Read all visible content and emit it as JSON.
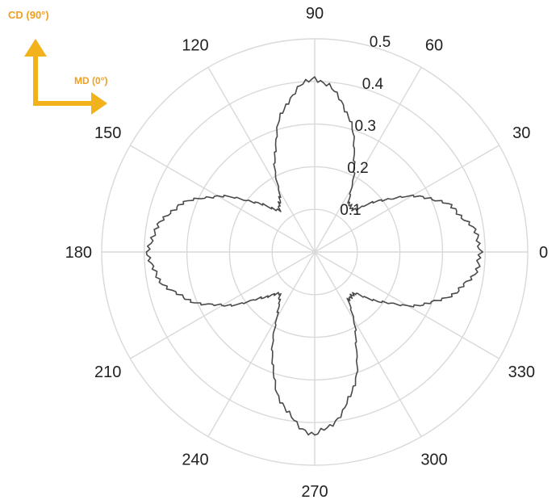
{
  "chart_data": {
    "type": "polar-line",
    "title": "",
    "angle_unit": "degrees",
    "angular_ticks": [
      0,
      30,
      60,
      90,
      120,
      150,
      180,
      210,
      240,
      270,
      300,
      330
    ],
    "angular_tick_labels": [
      "0",
      "30",
      "60",
      "90",
      "120",
      "150",
      "180",
      "210",
      "240",
      "270",
      "300",
      "330"
    ],
    "radial_ticks": [
      0.1,
      0.2,
      0.3,
      0.4,
      0.5
    ],
    "radial_tick_labels": [
      "0.1",
      "0.2",
      "0.3",
      "0.4",
      "0.5"
    ],
    "rlim": [
      0,
      0.5
    ],
    "grid": true,
    "series": [
      {
        "color": "#4a4a4a",
        "angles": [
          0,
          5,
          10,
          15,
          20,
          25,
          30,
          35,
          40,
          45,
          50,
          55,
          60,
          65,
          70,
          75,
          80,
          85,
          90,
          95,
          100,
          105,
          110,
          115,
          120,
          125,
          130,
          135,
          140,
          145,
          150,
          155,
          160,
          165,
          170,
          175,
          180,
          185,
          190,
          195,
          200,
          205,
          210,
          215,
          220,
          225,
          230,
          235,
          240,
          245,
          250,
          255,
          260,
          265,
          270,
          275,
          280,
          285,
          290,
          295,
          300,
          305,
          310,
          315,
          320,
          325,
          330,
          335,
          340,
          345,
          350,
          355
        ],
        "r": [
          0.39,
          0.385,
          0.37,
          0.35,
          0.33,
          0.3,
          0.26,
          0.22,
          0.18,
          0.145,
          0.13,
          0.14,
          0.17,
          0.22,
          0.27,
          0.32,
          0.36,
          0.39,
          0.41,
          0.39,
          0.36,
          0.32,
          0.27,
          0.22,
          0.17,
          0.14,
          0.13,
          0.145,
          0.18,
          0.22,
          0.26,
          0.3,
          0.33,
          0.355,
          0.37,
          0.385,
          0.39,
          0.385,
          0.37,
          0.35,
          0.32,
          0.29,
          0.25,
          0.21,
          0.17,
          0.14,
          0.13,
          0.14,
          0.18,
          0.23,
          0.29,
          0.34,
          0.38,
          0.41,
          0.43,
          0.41,
          0.38,
          0.34,
          0.29,
          0.23,
          0.18,
          0.14,
          0.13,
          0.14,
          0.17,
          0.21,
          0.25,
          0.29,
          0.32,
          0.35,
          0.37,
          0.385
        ]
      }
    ],
    "annotations": [
      {
        "text": "CD (90°)",
        "color": "#f0a020"
      },
      {
        "text": "MD (0°)",
        "color": "#f0a020"
      }
    ]
  }
}
